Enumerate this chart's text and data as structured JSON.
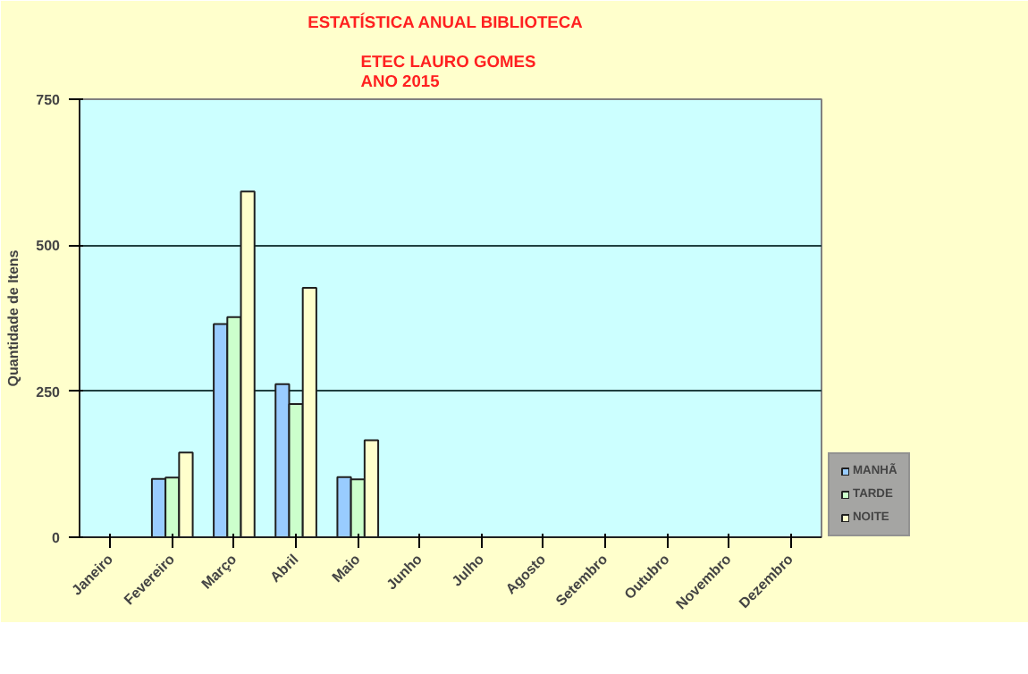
{
  "chart_data": {
    "type": "bar",
    "title": "ESTATÍSTICA  ANUAL  BIBLIOTECA",
    "subtitle": "ETEC LAURO  GOMES\nANO 2015",
    "ylabel": "Quantidade de Itens",
    "categories": [
      "Janeiro",
      "Fevereiro",
      "Março",
      "Abril",
      "Maio",
      "Junho",
      "Julho",
      "Agosto",
      "Setembro",
      "Outubro",
      "Novembro",
      "Dezembro"
    ],
    "series": [
      {
        "name": "MANHÃ",
        "color": "#99ccff",
        "values": [
          null,
          100,
          365,
          262,
          103,
          null,
          null,
          null,
          null,
          null,
          null,
          null
        ]
      },
      {
        "name": "TARDE",
        "color": "#ccffcc",
        "values": [
          null,
          102,
          377,
          228,
          99,
          null,
          null,
          null,
          null,
          null,
          null,
          null
        ]
      },
      {
        "name": "NOITE",
        "color": "#ffffcc",
        "values": [
          null,
          145,
          592,
          427,
          166,
          null,
          null,
          null,
          null,
          null,
          null,
          null
        ]
      }
    ],
    "ylim": [
      0,
      750
    ],
    "yticks": [
      0,
      250,
      500,
      750
    ],
    "grid": "y",
    "legend": "bottom right"
  }
}
